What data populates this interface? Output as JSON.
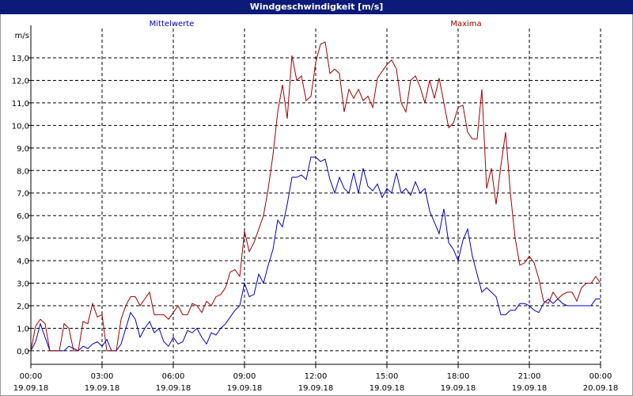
{
  "window": {
    "title": "Windgeschwindigkeit [m/s]"
  },
  "chart_data": {
    "type": "line",
    "title": "Windgeschwindigkeit [m/s]",
    "ylabel": "m/s",
    "ylim": [
      -0.6,
      14.3
    ],
    "xlim_hours": [
      0,
      24
    ],
    "y_ticks": [
      "0,0",
      "1,0",
      "2,0",
      "3,0",
      "4,0",
      "5,0",
      "6,0",
      "7,0",
      "8,0",
      "9,0",
      "10,0",
      "11,0",
      "12,0",
      "13,0"
    ],
    "x_ticks": [
      {
        "time": "00:00",
        "date": "19.09.18"
      },
      {
        "time": "03:00",
        "date": "19.09.18"
      },
      {
        "time": "06:00",
        "date": "19.09.18"
      },
      {
        "time": "09:00",
        "date": "19.09.18"
      },
      {
        "time": "12:00",
        "date": "19.09.18"
      },
      {
        "time": "15:00",
        "date": "19.09.18"
      },
      {
        "time": "18:00",
        "date": "19.09.18"
      },
      {
        "time": "21:00",
        "date": "19.09.18"
      },
      {
        "time": "00:00",
        "date": "20.09.18"
      }
    ],
    "grid": true,
    "legend_placement": "top",
    "series": [
      {
        "name": "Mittelwerte",
        "color": "#0000c8",
        "points": [
          [
            0.0,
            0.0
          ],
          [
            0.2,
            0.4
          ],
          [
            0.4,
            1.2
          ],
          [
            0.6,
            0.6
          ],
          [
            0.8,
            0.0
          ],
          [
            1.0,
            0.0
          ],
          [
            1.2,
            0.0
          ],
          [
            1.4,
            0.0
          ],
          [
            1.6,
            0.2
          ],
          [
            1.8,
            0.1
          ],
          [
            2.0,
            0.0
          ],
          [
            2.2,
            0.2
          ],
          [
            2.4,
            0.1
          ],
          [
            2.6,
            0.3
          ],
          [
            2.8,
            0.4
          ],
          [
            3.0,
            0.2
          ],
          [
            3.2,
            0.5
          ],
          [
            3.4,
            0.0
          ],
          [
            3.6,
            0.0
          ],
          [
            3.8,
            0.3
          ],
          [
            4.0,
            1.0
          ],
          [
            4.2,
            1.7
          ],
          [
            4.4,
            1.4
          ],
          [
            4.6,
            0.6
          ],
          [
            4.8,
            1.0
          ],
          [
            5.0,
            1.3
          ],
          [
            5.2,
            0.8
          ],
          [
            5.4,
            1.0
          ],
          [
            5.6,
            0.4
          ],
          [
            5.8,
            0.2
          ],
          [
            6.0,
            0.6
          ],
          [
            6.2,
            0.3
          ],
          [
            6.4,
            0.4
          ],
          [
            6.6,
            0.9
          ],
          [
            6.8,
            0.8
          ],
          [
            7.0,
            1.0
          ],
          [
            7.2,
            0.6
          ],
          [
            7.4,
            0.3
          ],
          [
            7.6,
            0.8
          ],
          [
            7.8,
            0.7
          ],
          [
            8.0,
            1.0
          ],
          [
            8.2,
            1.2
          ],
          [
            8.4,
            1.5
          ],
          [
            8.6,
            1.8
          ],
          [
            8.8,
            2.0
          ],
          [
            9.0,
            3.0
          ],
          [
            9.2,
            2.4
          ],
          [
            9.4,
            2.5
          ],
          [
            9.6,
            3.4
          ],
          [
            9.8,
            3.0
          ],
          [
            10.0,
            3.8
          ],
          [
            10.2,
            4.5
          ],
          [
            10.4,
            5.8
          ],
          [
            10.6,
            5.5
          ],
          [
            10.8,
            6.5
          ],
          [
            11.0,
            7.7
          ],
          [
            11.2,
            7.7
          ],
          [
            11.4,
            7.8
          ],
          [
            11.6,
            7.6
          ],
          [
            11.8,
            8.6
          ],
          [
            12.0,
            8.6
          ],
          [
            12.2,
            8.4
          ],
          [
            12.4,
            8.5
          ],
          [
            12.6,
            7.6
          ],
          [
            12.8,
            7.0
          ],
          [
            13.0,
            7.7
          ],
          [
            13.2,
            7.2
          ],
          [
            13.4,
            7.0
          ],
          [
            13.6,
            7.9
          ],
          [
            13.8,
            7.0
          ],
          [
            14.0,
            8.1
          ],
          [
            14.2,
            7.3
          ],
          [
            14.4,
            7.1
          ],
          [
            14.6,
            7.4
          ],
          [
            14.8,
            6.8
          ],
          [
            15.0,
            7.2
          ],
          [
            15.2,
            7.0
          ],
          [
            15.4,
            7.9
          ],
          [
            15.6,
            7.0
          ],
          [
            15.8,
            7.2
          ],
          [
            16.0,
            6.9
          ],
          [
            16.2,
            7.5
          ],
          [
            16.4,
            7.0
          ],
          [
            16.6,
            7.2
          ],
          [
            16.8,
            6.2
          ],
          [
            17.0,
            5.7
          ],
          [
            17.2,
            5.2
          ],
          [
            17.4,
            6.3
          ],
          [
            17.6,
            4.8
          ],
          [
            17.8,
            4.5
          ],
          [
            18.0,
            4.0
          ],
          [
            18.2,
            4.9
          ],
          [
            18.4,
            5.4
          ],
          [
            18.6,
            4.2
          ],
          [
            18.8,
            3.4
          ],
          [
            19.0,
            2.6
          ],
          [
            19.2,
            2.8
          ],
          [
            19.4,
            2.6
          ],
          [
            19.6,
            2.4
          ],
          [
            19.8,
            1.6
          ],
          [
            20.0,
            1.6
          ],
          [
            20.2,
            1.8
          ],
          [
            20.4,
            1.8
          ],
          [
            20.6,
            2.1
          ],
          [
            20.8,
            2.1
          ],
          [
            21.0,
            2.0
          ],
          [
            21.2,
            1.8
          ],
          [
            21.4,
            1.7
          ],
          [
            21.6,
            2.1
          ],
          [
            21.8,
            2.3
          ],
          [
            22.0,
            2.1
          ],
          [
            22.2,
            2.3
          ],
          [
            22.4,
            2.1
          ],
          [
            22.6,
            2.0
          ],
          [
            22.8,
            2.0
          ],
          [
            23.0,
            2.0
          ],
          [
            23.2,
            2.0
          ],
          [
            23.4,
            2.0
          ],
          [
            23.6,
            2.0
          ],
          [
            23.8,
            2.3
          ],
          [
            24.0,
            2.3
          ]
        ]
      },
      {
        "name": "Maxima",
        "color": "#a00000",
        "points": [
          [
            0.0,
            0.0
          ],
          [
            0.2,
            1.1
          ],
          [
            0.4,
            1.4
          ],
          [
            0.6,
            1.2
          ],
          [
            0.8,
            0.0
          ],
          [
            1.0,
            0.0
          ],
          [
            1.2,
            0.0
          ],
          [
            1.4,
            1.2
          ],
          [
            1.6,
            1.0
          ],
          [
            1.8,
            0.0
          ],
          [
            2.0,
            0.0
          ],
          [
            2.2,
            1.3
          ],
          [
            2.4,
            1.2
          ],
          [
            2.6,
            2.1
          ],
          [
            2.8,
            1.5
          ],
          [
            3.0,
            1.6
          ],
          [
            3.2,
            0.0
          ],
          [
            3.4,
            0.0
          ],
          [
            3.6,
            0.0
          ],
          [
            3.8,
            1.4
          ],
          [
            4.0,
            2.0
          ],
          [
            4.2,
            2.4
          ],
          [
            4.4,
            2.4
          ],
          [
            4.6,
            2.0
          ],
          [
            4.8,
            2.3
          ],
          [
            5.0,
            2.6
          ],
          [
            5.2,
            1.6
          ],
          [
            5.4,
            1.6
          ],
          [
            5.6,
            1.6
          ],
          [
            5.8,
            1.4
          ],
          [
            6.0,
            1.7
          ],
          [
            6.2,
            2.0
          ],
          [
            6.4,
            1.6
          ],
          [
            6.6,
            1.6
          ],
          [
            6.8,
            2.1
          ],
          [
            7.0,
            2.0
          ],
          [
            7.2,
            1.7
          ],
          [
            7.4,
            2.2
          ],
          [
            7.6,
            2.0
          ],
          [
            7.8,
            2.4
          ],
          [
            8.0,
            2.5
          ],
          [
            8.2,
            2.8
          ],
          [
            8.4,
            3.5
          ],
          [
            8.6,
            3.6
          ],
          [
            8.8,
            3.3
          ],
          [
            9.0,
            5.3
          ],
          [
            9.2,
            4.4
          ],
          [
            9.4,
            4.8
          ],
          [
            9.6,
            5.4
          ],
          [
            9.8,
            6.0
          ],
          [
            10.0,
            7.2
          ],
          [
            10.2,
            8.7
          ],
          [
            10.4,
            10.6
          ],
          [
            10.6,
            11.8
          ],
          [
            10.8,
            10.3
          ],
          [
            11.0,
            13.1
          ],
          [
            11.2,
            12.0
          ],
          [
            11.4,
            12.2
          ],
          [
            11.6,
            11.1
          ],
          [
            11.8,
            11.3
          ],
          [
            12.0,
            12.8
          ],
          [
            12.2,
            13.6
          ],
          [
            12.4,
            13.7
          ],
          [
            12.6,
            12.3
          ],
          [
            12.8,
            12.5
          ],
          [
            13.0,
            12.3
          ],
          [
            13.2,
            10.6
          ],
          [
            13.4,
            11.6
          ],
          [
            13.6,
            11.2
          ],
          [
            13.8,
            11.6
          ],
          [
            14.0,
            11.1
          ],
          [
            14.2,
            11.3
          ],
          [
            14.4,
            10.8
          ],
          [
            14.6,
            12.1
          ],
          [
            14.8,
            12.4
          ],
          [
            15.0,
            12.7
          ],
          [
            15.2,
            12.9
          ],
          [
            15.4,
            12.5
          ],
          [
            15.6,
            11.0
          ],
          [
            15.8,
            10.6
          ],
          [
            16.0,
            12.0
          ],
          [
            16.2,
            12.2
          ],
          [
            16.4,
            11.7
          ],
          [
            16.6,
            11.0
          ],
          [
            16.8,
            12.0
          ],
          [
            17.0,
            11.2
          ],
          [
            17.2,
            12.1
          ],
          [
            17.4,
            11.0
          ],
          [
            17.6,
            9.9
          ],
          [
            17.8,
            10.1
          ],
          [
            18.0,
            10.8
          ],
          [
            18.2,
            10.9
          ],
          [
            18.4,
            9.7
          ],
          [
            18.6,
            9.4
          ],
          [
            18.8,
            9.4
          ],
          [
            19.0,
            11.6
          ],
          [
            19.2,
            7.2
          ],
          [
            19.4,
            8.1
          ],
          [
            19.6,
            6.5
          ],
          [
            19.8,
            8.2
          ],
          [
            20.0,
            9.7
          ],
          [
            20.2,
            7.0
          ],
          [
            20.4,
            5.0
          ],
          [
            20.6,
            3.8
          ],
          [
            20.8,
            3.9
          ],
          [
            21.0,
            4.2
          ],
          [
            21.2,
            3.9
          ],
          [
            21.4,
            3.2
          ],
          [
            21.6,
            2.2
          ],
          [
            21.8,
            2.1
          ],
          [
            22.0,
            2.6
          ],
          [
            22.2,
            2.3
          ],
          [
            22.4,
            2.5
          ],
          [
            22.6,
            2.6
          ],
          [
            22.8,
            2.6
          ],
          [
            23.0,
            2.2
          ],
          [
            23.2,
            2.8
          ],
          [
            23.4,
            3.0
          ],
          [
            23.6,
            3.0
          ],
          [
            23.8,
            3.3
          ],
          [
            24.0,
            3.0
          ]
        ]
      }
    ]
  }
}
